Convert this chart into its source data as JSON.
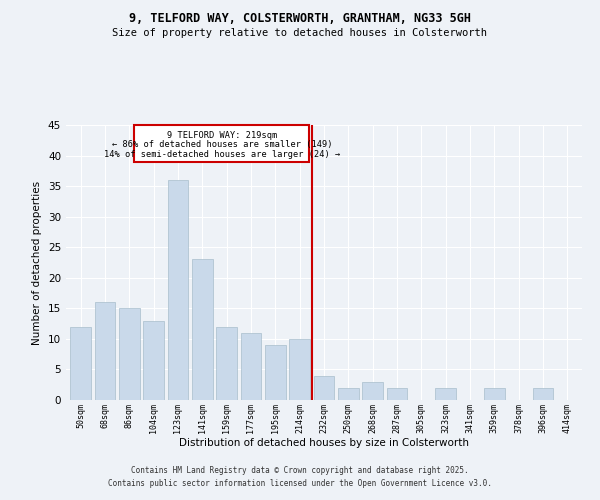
{
  "title_line1": "9, TELFORD WAY, COLSTERWORTH, GRANTHAM, NG33 5GH",
  "title_line2": "Size of property relative to detached houses in Colsterworth",
  "xlabel": "Distribution of detached houses by size in Colsterworth",
  "ylabel": "Number of detached properties",
  "bar_labels": [
    "50sqm",
    "68sqm",
    "86sqm",
    "104sqm",
    "123sqm",
    "141sqm",
    "159sqm",
    "177sqm",
    "195sqm",
    "214sqm",
    "232sqm",
    "250sqm",
    "268sqm",
    "287sqm",
    "305sqm",
    "323sqm",
    "341sqm",
    "359sqm",
    "378sqm",
    "396sqm",
    "414sqm"
  ],
  "bar_values": [
    12,
    16,
    15,
    13,
    36,
    23,
    12,
    11,
    9,
    10,
    4,
    2,
    3,
    2,
    0,
    2,
    0,
    2,
    0,
    2,
    0
  ],
  "bar_color": "#c9d9ea",
  "bar_edgecolor": "#a8becc",
  "vline_color": "#cc0000",
  "annotation_box_color": "#cc0000",
  "annotation_text_color": "#000000",
  "ylim": [
    0,
    45
  ],
  "yticks": [
    0,
    5,
    10,
    15,
    20,
    25,
    30,
    35,
    40,
    45
  ],
  "background_color": "#eef2f7",
  "grid_color": "#ffffff",
  "footer": "Contains HM Land Registry data © Crown copyright and database right 2025.\nContains public sector information licensed under the Open Government Licence v3.0."
}
